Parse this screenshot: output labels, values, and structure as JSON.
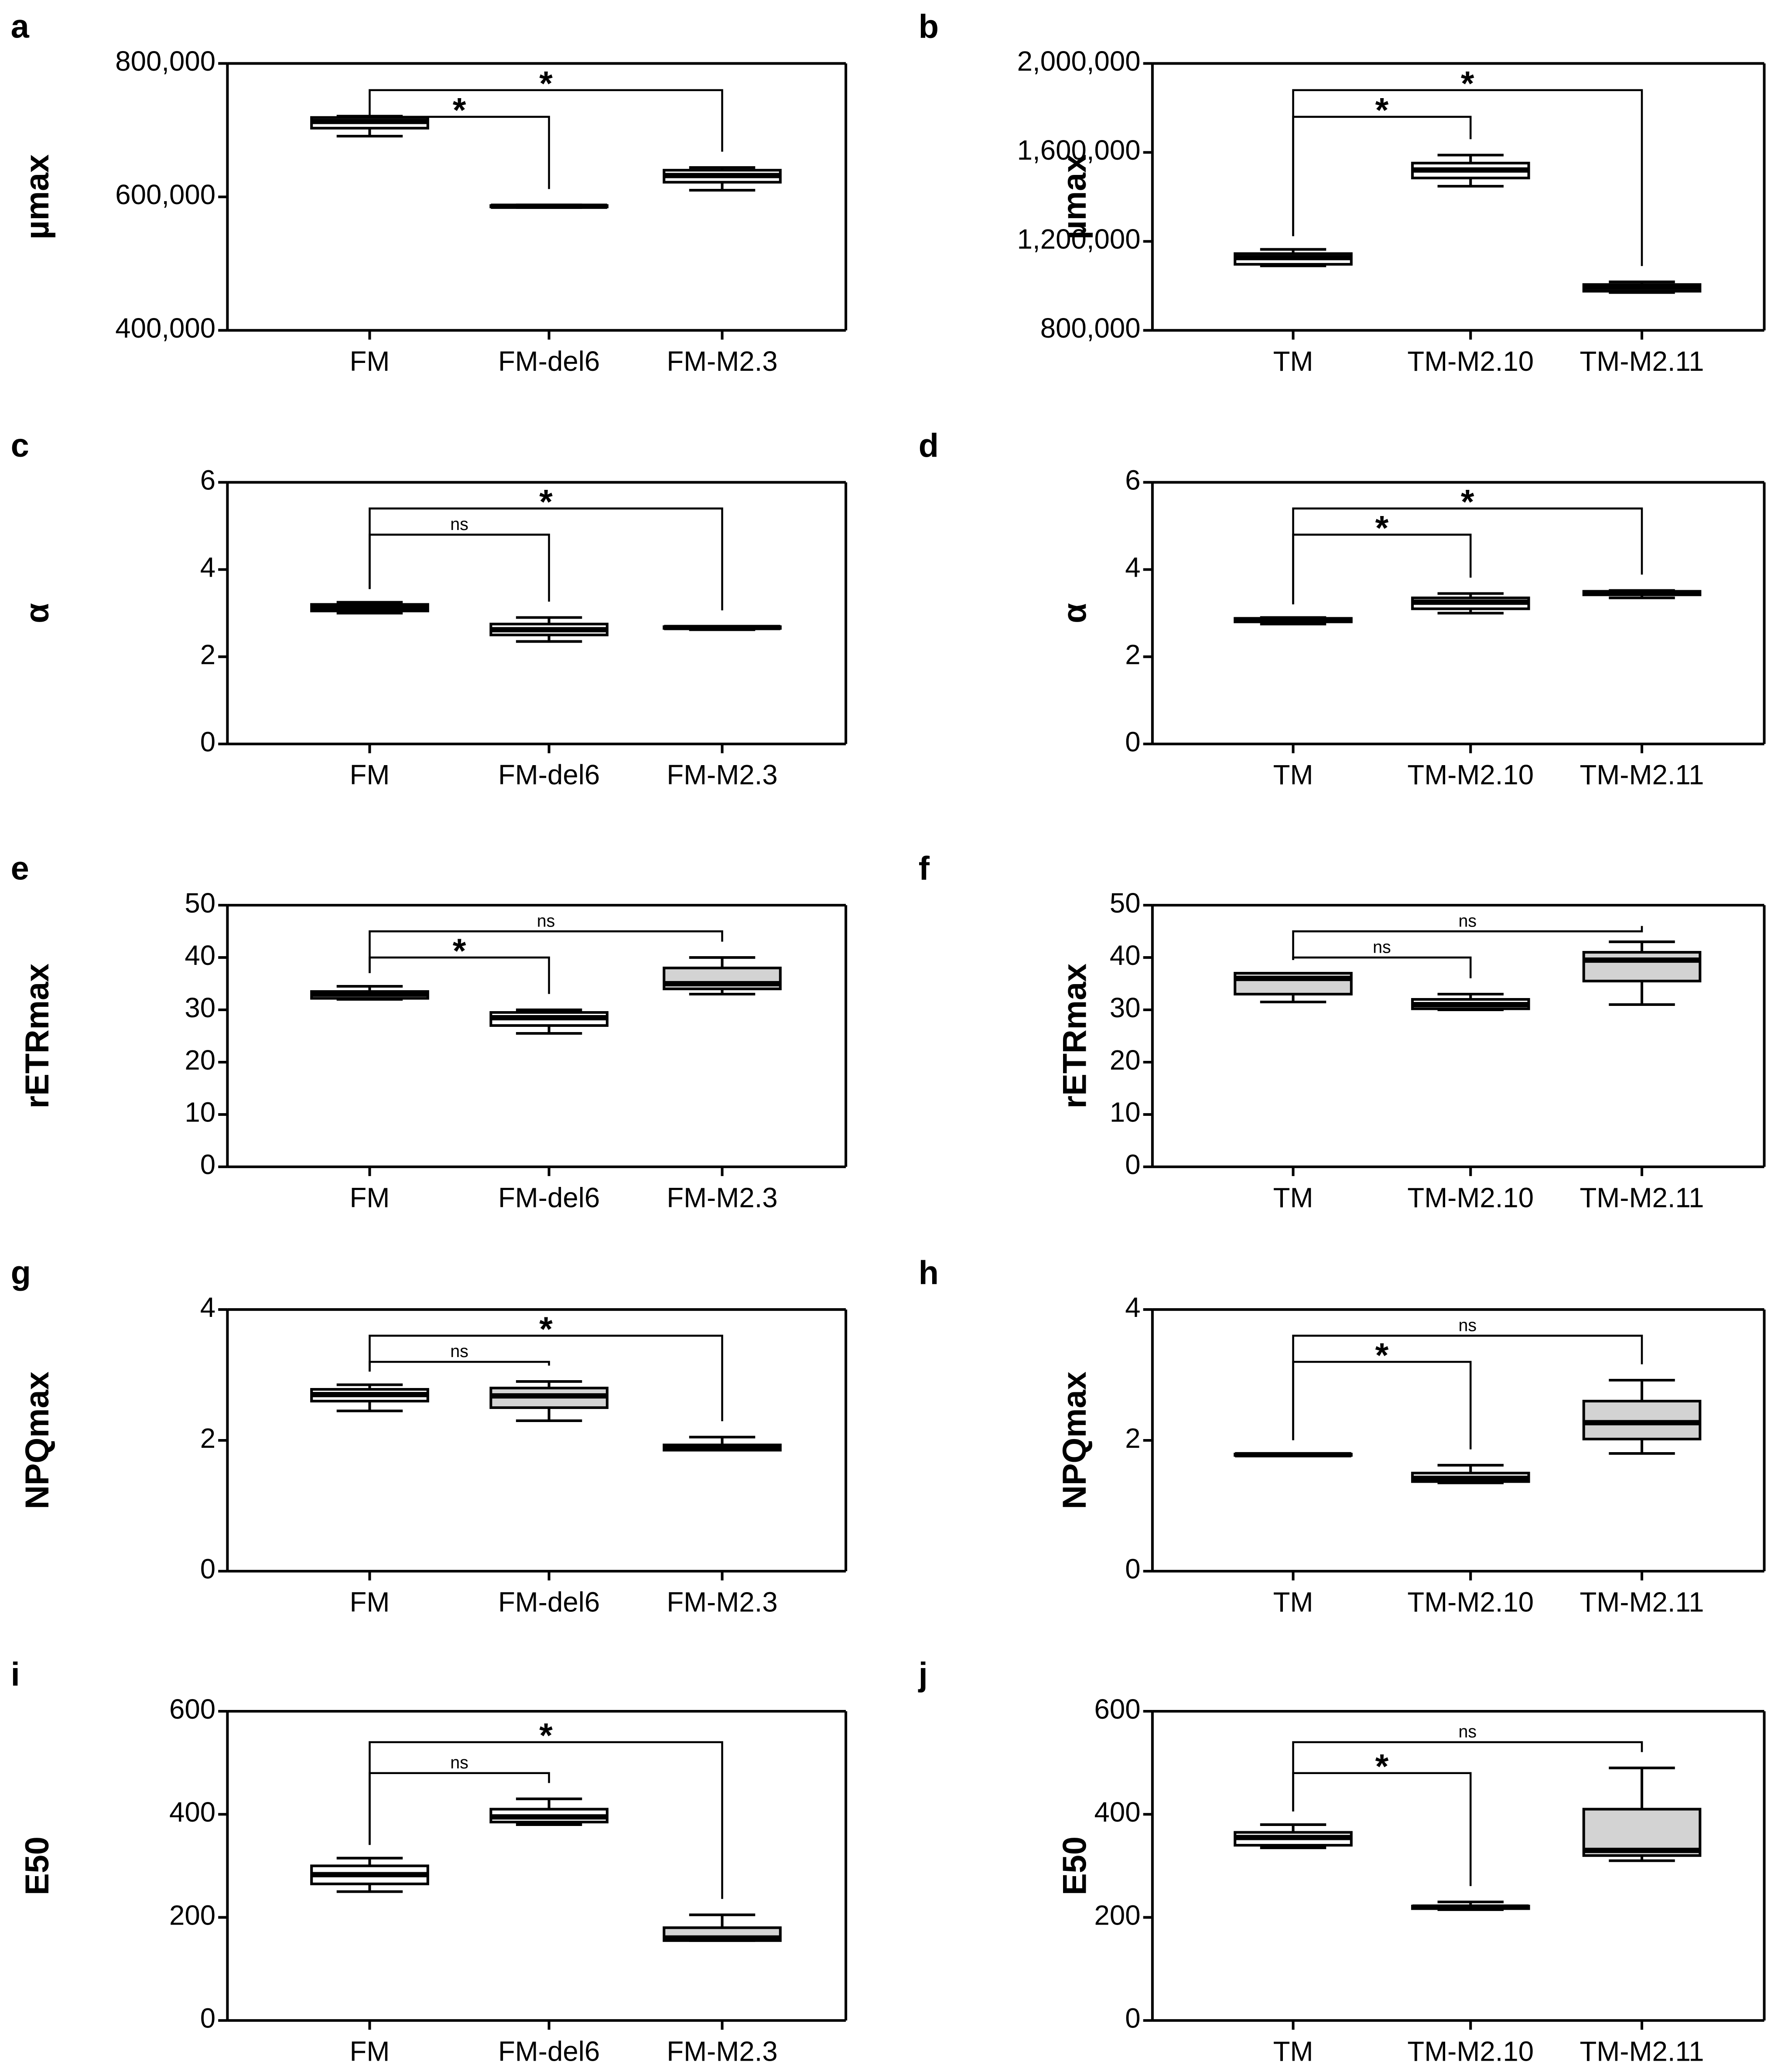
{
  "chart_data": [
    {
      "type": "box",
      "panel": "a",
      "ylabel": "µmax",
      "categories": [
        "FM",
        "FM-del6",
        "FM-M2.3"
      ],
      "boxes": [
        {
          "min": 691000,
          "q1": 703000,
          "median": 713000,
          "q3": 719000,
          "max": 721000,
          "fill": "#ffffff"
        },
        {
          "min": 584000,
          "q1": 585000,
          "median": 586000,
          "q3": 587000,
          "max": 588000,
          "fill": "#ffffff"
        },
        {
          "min": 610000,
          "q1": 622000,
          "median": 632000,
          "q3": 640000,
          "max": 644000,
          "fill": "#ffffff"
        }
      ],
      "ylim": [
        400000,
        800000
      ],
      "yticks": [
        {
          "value": 400000,
          "label": "400,000"
        },
        {
          "value": 600000,
          "label": "600,000"
        },
        {
          "value": 800000,
          "label": "800,000"
        }
      ],
      "comparisons": [
        {
          "from": "FM",
          "to": "FM-del6",
          "label": "*"
        },
        {
          "from": "FM",
          "to": "FM-M2.3",
          "label": "*"
        }
      ]
    },
    {
      "type": "box",
      "panel": "b",
      "ylabel": "µmax",
      "categories": [
        "TM",
        "TM-M2.10",
        "TM-M2.11"
      ],
      "boxes": [
        {
          "min": 1090000,
          "q1": 1097000,
          "median": 1127000,
          "q3": 1145000,
          "max": 1164000,
          "fill": "#ffffff"
        },
        {
          "min": 1448000,
          "q1": 1485000,
          "median": 1521000,
          "q3": 1552000,
          "max": 1588000,
          "fill": "#ffffff"
        },
        {
          "min": 970000,
          "q1": 976000,
          "median": 994000,
          "q3": 1006000,
          "max": 1018000,
          "fill": "#ffffff"
        }
      ],
      "ylim": [
        800000,
        2000000
      ],
      "yticks": [
        {
          "value": 800000,
          "label": "800,000"
        },
        {
          "value": 1200000,
          "label": "1,200,000"
        },
        {
          "value": 1600000,
          "label": "1,600,000"
        },
        {
          "value": 2000000,
          "label": "2,000,000"
        }
      ],
      "comparisons": [
        {
          "from": "TM",
          "to": "TM-M2.10",
          "label": "*"
        },
        {
          "from": "TM",
          "to": "TM-M2.11",
          "label": "*"
        }
      ]
    },
    {
      "type": "box",
      "panel": "c",
      "ylabel": "α",
      "categories": [
        "FM",
        "FM-del6",
        "FM-M2.3"
      ],
      "boxes": [
        {
          "min": 3.0,
          "q1": 3.05,
          "median": 3.12,
          "q3": 3.2,
          "max": 3.25,
          "fill": "#ffffff"
        },
        {
          "min": 2.35,
          "q1": 2.5,
          "median": 2.62,
          "q3": 2.75,
          "max": 2.9,
          "fill": "#ffffff"
        },
        {
          "min": 2.62,
          "q1": 2.65,
          "median": 2.67,
          "q3": 2.69,
          "max": 2.7,
          "fill": "#ffffff"
        }
      ],
      "ylim": [
        0,
        6
      ],
      "yticks": [
        0,
        2,
        4,
        6
      ],
      "comparisons": [
        {
          "from": "FM",
          "to": "FM-del6",
          "label": "ns"
        },
        {
          "from": "FM",
          "to": "FM-M2.3",
          "label": "*"
        }
      ]
    },
    {
      "type": "box",
      "panel": "d",
      "ylabel": "α",
      "categories": [
        "TM",
        "TM-M2.10",
        "TM-M2.11"
      ],
      "boxes": [
        {
          "min": 2.75,
          "q1": 2.8,
          "median": 2.85,
          "q3": 2.88,
          "max": 2.9,
          "fill": "#ffffff"
        },
        {
          "min": 3.0,
          "q1": 3.1,
          "median": 3.25,
          "q3": 3.35,
          "max": 3.45,
          "fill": "#ffffff"
        },
        {
          "min": 3.35,
          "q1": 3.42,
          "median": 3.47,
          "q3": 3.5,
          "max": 3.52,
          "fill": "#ffffff"
        }
      ],
      "ylim": [
        0,
        6
      ],
      "yticks": [
        0,
        2,
        4,
        6
      ],
      "comparisons": [
        {
          "from": "TM",
          "to": "TM-M2.10",
          "label": "*"
        },
        {
          "from": "TM",
          "to": "TM-M2.11",
          "label": "*"
        }
      ]
    },
    {
      "type": "box",
      "panel": "e",
      "ylabel": "rETRmax",
      "categories": [
        "FM",
        "FM-del6",
        "FM-M2.3"
      ],
      "boxes": [
        {
          "min": 32,
          "q1": 32.2,
          "median": 33,
          "q3": 33.5,
          "max": 34.5,
          "fill": "#ffffff"
        },
        {
          "min": 25.5,
          "q1": 27,
          "median": 28.5,
          "q3": 29.5,
          "max": 30,
          "fill": "#ffffff"
        },
        {
          "min": 33,
          "q1": 34,
          "median": 35,
          "q3": 38,
          "max": 40,
          "fill": "#d3d3d3"
        }
      ],
      "ylim": [
        0,
        50
      ],
      "yticks": [
        0,
        10,
        20,
        30,
        40,
        50
      ],
      "comparisons": [
        {
          "from": "FM",
          "to": "FM-del6",
          "label": "*"
        },
        {
          "from": "FM",
          "to": "FM-M2.3",
          "label": "ns"
        }
      ]
    },
    {
      "type": "box",
      "panel": "f",
      "ylabel": "rETRmax",
      "categories": [
        "TM",
        "TM-M2.10",
        "TM-M2.11"
      ],
      "boxes": [
        {
          "min": 31.5,
          "q1": 33,
          "median": 36,
          "q3": 37,
          "max": 37,
          "fill": "#d3d3d3"
        },
        {
          "min": 30,
          "q1": 30.2,
          "median": 31,
          "q3": 32,
          "max": 33,
          "fill": "#ffffff"
        },
        {
          "min": 31,
          "q1": 35.5,
          "median": 39.5,
          "q3": 41,
          "max": 43,
          "fill": "#d3d3d3"
        }
      ],
      "ylim": [
        0,
        50
      ],
      "yticks": [
        0,
        10,
        20,
        30,
        40,
        50
      ],
      "comparisons": [
        {
          "from": "TM",
          "to": "TM-M2.10",
          "label": "ns"
        },
        {
          "from": "TM",
          "to": "TM-M2.11",
          "label": "ns"
        }
      ]
    },
    {
      "type": "box",
      "panel": "g",
      "ylabel": "NPQmax",
      "categories": [
        "FM",
        "FM-del6",
        "FM-M2.3"
      ],
      "boxes": [
        {
          "min": 2.45,
          "q1": 2.6,
          "median": 2.7,
          "q3": 2.78,
          "max": 2.85,
          "fill": "#ffffff"
        },
        {
          "min": 2.3,
          "q1": 2.5,
          "median": 2.68,
          "q3": 2.8,
          "max": 2.9,
          "fill": "#d3d3d3"
        },
        {
          "min": 1.85,
          "q1": 1.85,
          "median": 1.88,
          "q3": 1.93,
          "max": 2.05,
          "fill": "#ffffff"
        }
      ],
      "ylim": [
        0,
        4
      ],
      "yticks": [
        0,
        2,
        4
      ],
      "comparisons": [
        {
          "from": "FM",
          "to": "FM-del6",
          "label": "ns"
        },
        {
          "from": "FM",
          "to": "FM-M2.3",
          "label": "*"
        }
      ]
    },
    {
      "type": "box",
      "panel": "h",
      "ylabel": "NPQmax",
      "categories": [
        "TM",
        "TM-M2.10",
        "TM-M2.11"
      ],
      "boxes": [
        {
          "min": 1.76,
          "q1": 1.77,
          "median": 1.78,
          "q3": 1.79,
          "max": 1.8,
          "fill": "#ffffff"
        },
        {
          "min": 1.35,
          "q1": 1.37,
          "median": 1.42,
          "q3": 1.5,
          "max": 1.62,
          "fill": "#ffffff"
        },
        {
          "min": 1.8,
          "q1": 2.02,
          "median": 2.27,
          "q3": 2.6,
          "max": 2.92,
          "fill": "#d3d3d3"
        }
      ],
      "ylim": [
        0,
        4
      ],
      "yticks": [
        0,
        2,
        4
      ],
      "comparisons": [
        {
          "from": "TM",
          "to": "TM-M2.10",
          "label": "*"
        },
        {
          "from": "TM",
          "to": "TM-M2.11",
          "label": "ns"
        }
      ]
    },
    {
      "type": "box",
      "panel": "i",
      "ylabel": "E50",
      "categories": [
        "FM",
        "FM-del6",
        "FM-M2.3"
      ],
      "boxes": [
        {
          "min": 250,
          "q1": 265,
          "median": 283,
          "q3": 300,
          "max": 315,
          "fill": "#ffffff"
        },
        {
          "min": 380,
          "q1": 385,
          "median": 395,
          "q3": 410,
          "max": 430,
          "fill": "#ffffff"
        },
        {
          "min": 155,
          "q1": 155,
          "median": 160,
          "q3": 180,
          "max": 205,
          "fill": "#d3d3d3"
        }
      ],
      "ylim": [
        0,
        600
      ],
      "yticks": [
        0,
        200,
        400,
        600
      ],
      "comparisons": [
        {
          "from": "FM",
          "to": "FM-del6",
          "label": "ns"
        },
        {
          "from": "FM",
          "to": "FM-M2.3",
          "label": "*"
        }
      ]
    },
    {
      "type": "box",
      "panel": "j",
      "ylabel": "E50",
      "categories": [
        "TM",
        "TM-M2.10",
        "TM-M2.11"
      ],
      "boxes": [
        {
          "min": 335,
          "q1": 340,
          "median": 355,
          "q3": 365,
          "max": 380,
          "fill": "#ffffff"
        },
        {
          "min": 215,
          "q1": 217,
          "median": 220,
          "q3": 222,
          "max": 230,
          "fill": "#ffffff"
        },
        {
          "min": 310,
          "q1": 320,
          "median": 330,
          "q3": 410,
          "max": 490,
          "fill": "#d3d3d3"
        }
      ],
      "ylim": [
        0,
        600
      ],
      "yticks": [
        0,
        200,
        400,
        600
      ],
      "comparisons": [
        {
          "from": "TM",
          "to": "TM-M2.10",
          "label": "*"
        },
        {
          "from": "TM",
          "to": "TM-M2.11",
          "label": "ns"
        }
      ]
    }
  ]
}
